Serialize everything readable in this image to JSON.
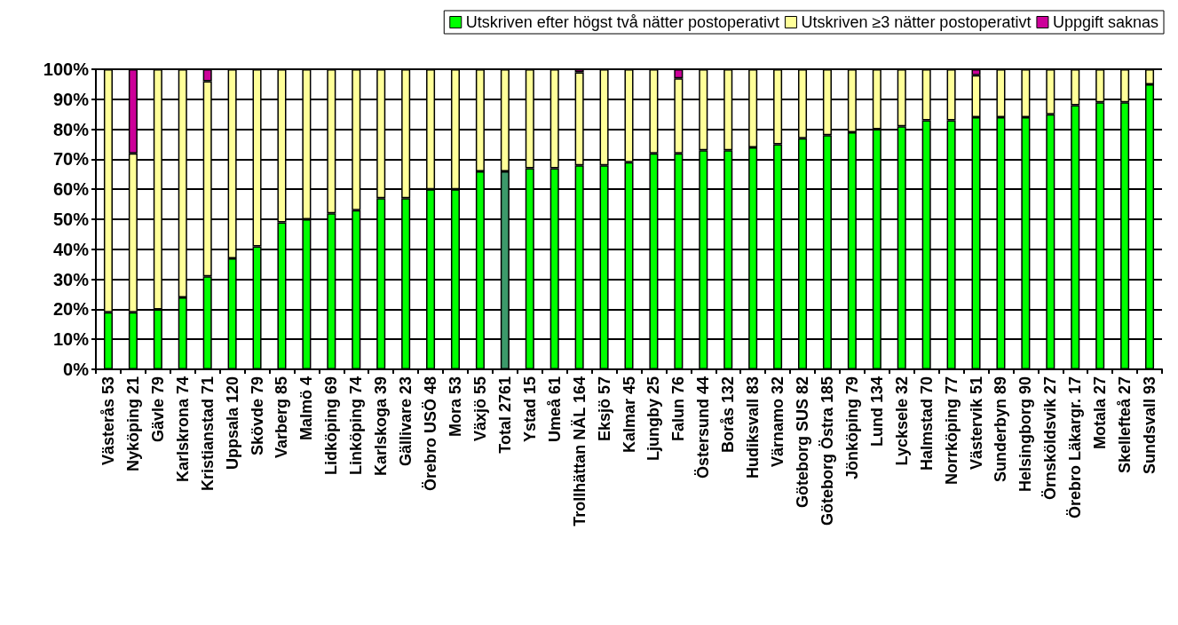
{
  "chart_data": {
    "type": "bar",
    "stacked": true,
    "legend": "top",
    "grid": "y",
    "categories": [
      "Västerås 53",
      "Nyköping 21",
      "Gävle 79",
      "Karlskrona 74",
      "Kristianstad 71",
      "Uppsala 120",
      "Skövde 79",
      "Varberg 85",
      "Malmö 4",
      "Lidköping 69",
      "Linköping 74",
      "Karlskoga 39",
      "Gällivare 23",
      "Örebro USÖ 48",
      "Mora 53",
      "Växjö 55",
      "Total 2761",
      "Ystad 15",
      "Umeå 61",
      "Trollhättan NÄL 164",
      "Eksjö 57",
      "Kalmar 45",
      "Ljungby 25",
      "Falun 76",
      "Östersund 44",
      "Borås 132",
      "Hudiksvall 83",
      "Värnamo 32",
      "Göteborg SUS 82",
      "Göteborg Östra 185",
      "Jönköping 79",
      "Lund 134",
      "Lycksele 32",
      "Halmstad 70",
      "Norrköping 77",
      "Västervik 51",
      "Sunderbyn 89",
      "Helsingborg 90",
      "Örnsköldsvik 27",
      "Örebro Läkargr. 17",
      "Motala 27",
      "Skellefteå 27",
      "Sundsvall 93"
    ],
    "series": [
      {
        "name": "Utskriven efter högst två nätter postoperativt",
        "color": "#00ff00",
        "colors": [
          "#00ff00",
          "#00ff00",
          "#00ff00",
          "#00ff00",
          "#00ff00",
          "#00ff00",
          "#00ff00",
          "#00ff00",
          "#00ff00",
          "#00ff00",
          "#00ff00",
          "#00ff00",
          "#00ff00",
          "#00ff00",
          "#00ff00",
          "#00ff00",
          "#3c9a6a",
          "#00ff00",
          "#00ff00",
          "#00ff00",
          "#00ff00",
          "#00ff00",
          "#00ff00",
          "#00ff00",
          "#00ff00",
          "#00ff00",
          "#00ff00",
          "#00ff00",
          "#00ff00",
          "#00ff00",
          "#00ff00",
          "#00ff00",
          "#00ff00",
          "#00ff00",
          "#00ff00",
          "#00ff00",
          "#00ff00",
          "#00ff00",
          "#00ff00",
          "#00ff00",
          "#00ff00",
          "#00ff00",
          "#00ff00"
        ],
        "values": [
          19,
          19,
          20,
          24,
          31,
          37,
          41,
          49,
          50,
          52,
          53,
          57,
          57,
          60,
          60,
          66,
          66,
          67,
          67,
          68,
          68,
          69,
          72,
          72,
          73,
          73,
          74,
          75,
          77,
          78,
          79,
          80,
          81,
          83,
          83,
          84,
          84,
          84,
          85,
          88,
          89,
          89,
          95
        ]
      },
      {
        "name": "Utskriven ≥3 nätter postoperativt",
        "color": "#ffff99",
        "values": [
          81,
          53,
          80,
          76,
          65,
          63,
          59,
          51,
          50,
          48,
          47,
          43,
          43,
          40,
          40,
          34,
          34,
          33,
          33,
          31,
          32,
          31,
          28,
          25,
          27,
          27,
          26,
          25,
          23,
          22,
          21,
          20,
          19,
          17,
          17,
          14,
          16,
          16,
          15,
          12,
          11,
          11,
          5
        ]
      },
      {
        "name": "Uppgift saknas",
        "color": "#cc0099",
        "values": [
          0,
          28,
          0,
          0,
          4,
          0,
          0,
          0,
          0,
          0,
          0,
          0,
          0,
          0,
          0,
          0,
          0,
          0,
          0,
          1,
          0,
          0,
          0,
          3,
          0,
          0,
          0,
          0,
          0,
          0,
          0,
          0,
          0,
          0,
          0,
          2,
          0,
          0,
          0,
          0,
          0,
          0,
          0
        ]
      }
    ],
    "ylim": [
      0,
      100
    ],
    "yticks": [
      {
        "value": 0,
        "label": "0%"
      },
      {
        "value": 10,
        "label": "10%"
      },
      {
        "value": 20,
        "label": "20%"
      },
      {
        "value": 30,
        "label": "30%"
      },
      {
        "value": 40,
        "label": "40%"
      },
      {
        "value": 50,
        "label": "50%"
      },
      {
        "value": 60,
        "label": "60%"
      },
      {
        "value": 70,
        "label": "70%"
      },
      {
        "value": 80,
        "label": "80%"
      },
      {
        "value": 90,
        "label": "90%"
      },
      {
        "value": 100,
        "label": "100%"
      }
    ]
  }
}
